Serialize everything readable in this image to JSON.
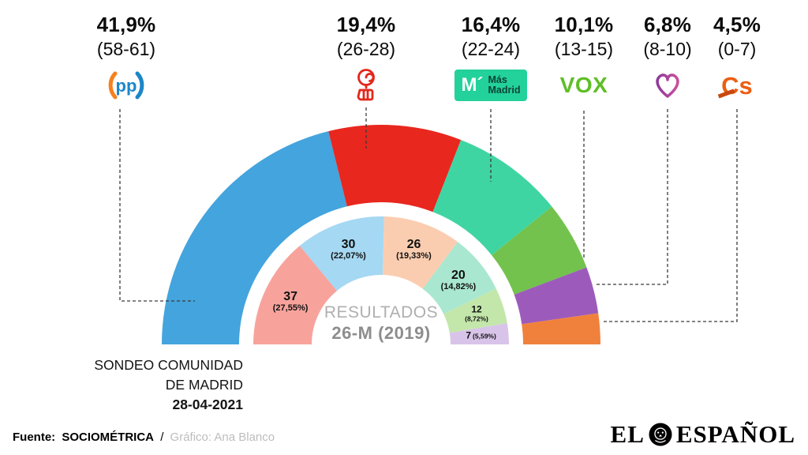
{
  "header": {
    "parties": [
      {
        "id": "pp",
        "name": "PP",
        "pct": "41,9%",
        "seats": "(58-61)"
      },
      {
        "id": "psoe",
        "name": "PSOE",
        "pct": "19,4%",
        "seats": "(26-28)"
      },
      {
        "id": "mas-madrid",
        "name": "Más Madrid",
        "pct": "16,4%",
        "seats": "(22-24)"
      },
      {
        "id": "vox",
        "name": "VOX",
        "pct": "10,1%",
        "seats": "(13-15)"
      },
      {
        "id": "podemos",
        "name": "Podemos",
        "pct": "6,8%",
        "seats": "(8-10)"
      },
      {
        "id": "cs",
        "name": "Ciudadanos",
        "pct": "4,5%",
        "seats": "(0-7)"
      }
    ]
  },
  "logos": {
    "pp": "pp",
    "mas_madrid_initial": "M´",
    "mas_madrid_line1": "Más",
    "mas_madrid_line2": "Madrid",
    "vox": "VOX",
    "cs": "Cs"
  },
  "chart_data": {
    "type": "half-donut",
    "title": "Sondeo Comunidad de Madrid 28-04-2021 vs Resultados 26-M (2019)",
    "outer_ring": {
      "label": "Sondeo 28-04-2021",
      "series": [
        {
          "party": "PP",
          "pct": 41.9,
          "seats_range": "58-61",
          "color": "#44A4DD"
        },
        {
          "party": "PSOE",
          "pct": 19.4,
          "seats_range": "26-28",
          "color": "#E8271E"
        },
        {
          "party": "Más Madrid",
          "pct": 16.4,
          "seats_range": "22-24",
          "color": "#3FD5A2"
        },
        {
          "party": "VOX",
          "pct": 10.1,
          "seats_range": "13-15",
          "color": "#72C24D"
        },
        {
          "party": "Podemos",
          "pct": 6.8,
          "seats_range": "8-10",
          "color": "#9C5BBB"
        },
        {
          "party": "Cs",
          "pct": 4.5,
          "seats_range": "0-7",
          "color": "#F0813C"
        }
      ]
    },
    "inner_ring": {
      "label": "Resultados 26-M (2019)",
      "series": [
        {
          "party": "PSOE",
          "seats": 37,
          "seats_label": "37",
          "pct_label": "(27,55%)",
          "color": "#F7A39C",
          "size": "normal",
          "layout": "stacked"
        },
        {
          "party": "PP",
          "seats": 30,
          "seats_label": "30",
          "pct_label": "(22,07%)",
          "color": "#A5D8F2",
          "size": "normal",
          "layout": "stacked"
        },
        {
          "party": "Cs",
          "seats": 26,
          "seats_label": "26",
          "pct_label": "(19,33%)",
          "color": "#FBCDB0",
          "size": "normal",
          "layout": "stacked"
        },
        {
          "party": "Más Madrid",
          "seats": 20,
          "seats_label": "20",
          "pct_label": "(14,82%)",
          "color": "#A9E7D0",
          "size": "normal",
          "layout": "stacked"
        },
        {
          "party": "VOX",
          "seats": 12,
          "seats_label": "12",
          "pct_label": "(8,72%)",
          "color": "#C3E7AB",
          "size": "small",
          "layout": "stacked"
        },
        {
          "party": "Podemos",
          "seats": 7,
          "seats_label": "7",
          "pct_label": "(5,59%)",
          "color": "#D9C4E9",
          "size": "small",
          "layout": "inline"
        }
      ]
    },
    "center_label_line1": "RESULTADOS",
    "center_label_line2": "26-M (2019)"
  },
  "caption": {
    "line1": "SONDEO COMUNIDAD",
    "line2": "DE MADRID",
    "date": "28-04-2021"
  },
  "footer": {
    "source_label": "Fuente:",
    "source": "SOCIOMÉTRICA",
    "separator": "/",
    "credit": "Gráfico: Ana Blanco"
  },
  "brand": {
    "el": "EL",
    "espanol": "ESPAÑOL"
  }
}
